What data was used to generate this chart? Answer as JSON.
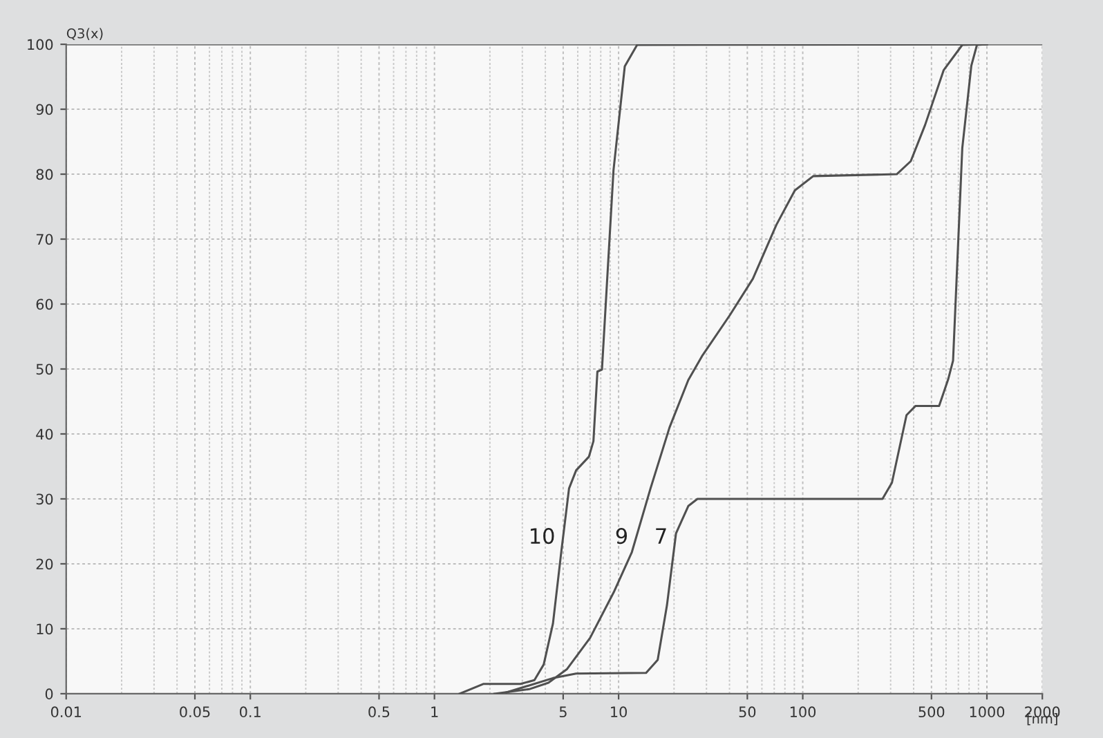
{
  "chart_data": {
    "type": "line",
    "xlabel": "[nm]",
    "ylabel": "Q3(x)",
    "log": "x",
    "grid": true,
    "legend": false,
    "marker": "none",
    "line_style": "solid",
    "xlim": [
      0.01,
      2000
    ],
    "ylim": [
      0,
      100
    ],
    "xticks": [
      0.01,
      0.05,
      0.1,
      0.5,
      1,
      5,
      10,
      50,
      100,
      500,
      1000,
      2000
    ],
    "yticks": [
      0,
      10,
      20,
      30,
      40,
      50,
      60,
      70,
      80,
      90,
      100
    ],
    "series": [
      {
        "name": "10",
        "color": "#505050",
        "x": [
          1.37,
          1.84,
          2.93,
          3.49,
          3.92,
          4.4,
          4.89,
          5.38,
          5.88,
          6.9,
          7.3,
          7.67,
          8.12,
          9.38,
          10.8,
          12.6,
          1000
        ],
        "values": [
          0,
          1.5,
          1.5,
          2.1,
          4.5,
          10.8,
          22,
          31.6,
          34.4,
          36.5,
          38.9,
          49.6,
          49.9,
          80.6,
          96.6,
          99.9,
          100
        ]
      },
      {
        "name": "9",
        "color": "#505050",
        "x": [
          2.12,
          3.27,
          4.16,
          5.25,
          7.0,
          9.4,
          11.8,
          14.9,
          18.9,
          23.9,
          28.4,
          40.2,
          53.6,
          71.9,
          90.6,
          114,
          324,
          386,
          462,
          582,
          735,
          1000
        ],
        "values": [
          0,
          0.7,
          1.7,
          3.8,
          8.6,
          15.6,
          21.8,
          31.6,
          41,
          48.3,
          52,
          58.3,
          63.9,
          72.2,
          77.5,
          79.7,
          80,
          82,
          87.6,
          96,
          99.9,
          100
        ]
      },
      {
        "name": "7",
        "color": "#505050",
        "x": [
          2.46,
          4.4,
          5.88,
          14.1,
          16.3,
          18.3,
          20.5,
          23.9,
          26.8,
          271,
          305,
          366,
          409,
          550,
          616,
          655,
          735,
          823,
          883,
          1000
        ],
        "values": [
          0.2,
          2.4,
          3.1,
          3.2,
          5.2,
          13.6,
          24.7,
          28.9,
          30,
          30,
          32.5,
          42.9,
          44.3,
          44.3,
          48.4,
          51.3,
          84,
          96.7,
          99.9,
          100
        ]
      }
    ]
  }
}
